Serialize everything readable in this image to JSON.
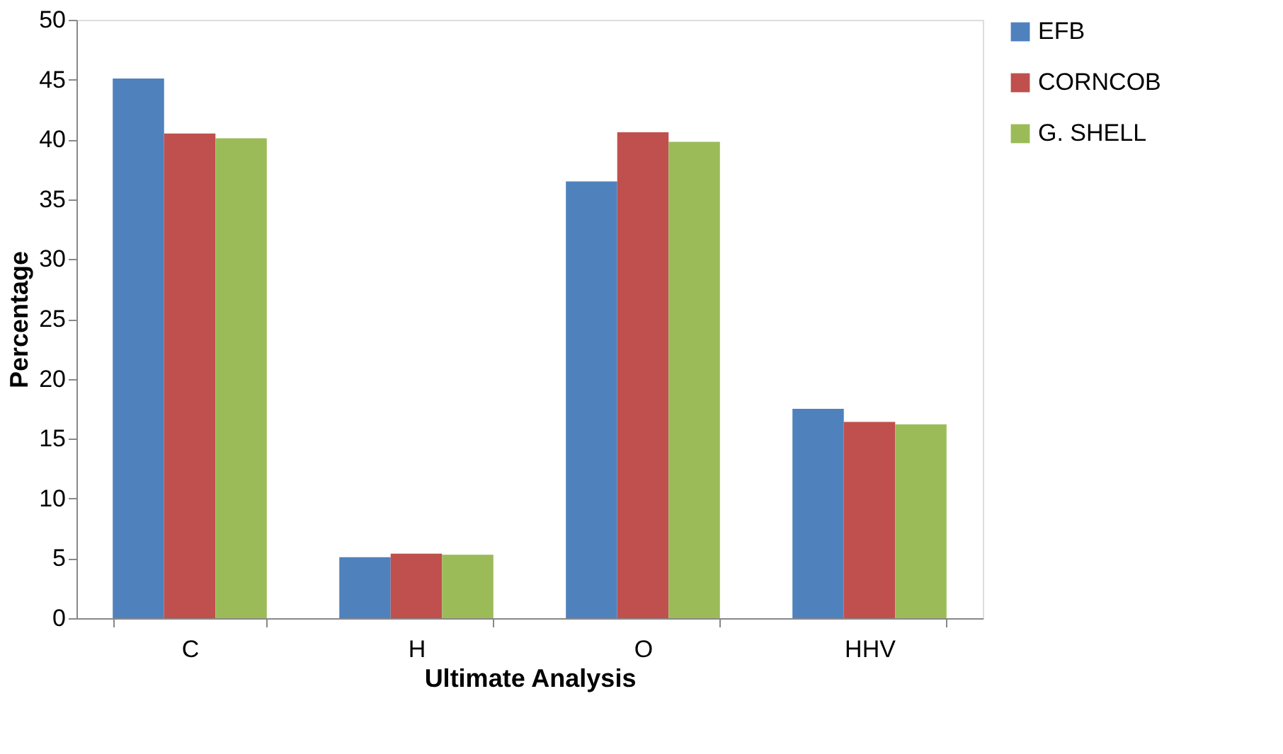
{
  "chart_data": {
    "type": "bar",
    "xlabel": "Ultimate Analysis",
    "ylabel": "Percentage",
    "categories": [
      "C",
      "H",
      "O",
      "HHV"
    ],
    "series": [
      {
        "name": "EFB",
        "color": "#4f81bd",
        "values": [
          45.1,
          5.1,
          36.5,
          17.5
        ]
      },
      {
        "name": "CORNCOB",
        "color": "#c0504d",
        "values": [
          40.5,
          5.4,
          40.6,
          16.4
        ]
      },
      {
        "name": "G. SHELL",
        "color": "#9bbb59",
        "values": [
          40.1,
          5.3,
          39.8,
          16.2
        ]
      }
    ],
    "ylim": [
      0,
      50
    ],
    "yticks": [
      0,
      5,
      10,
      15,
      20,
      25,
      30,
      35,
      40,
      45,
      50
    ],
    "grid": false,
    "legend": "right"
  }
}
